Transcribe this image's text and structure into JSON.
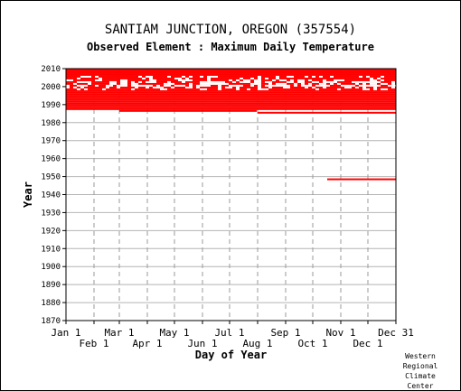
{
  "page": {
    "title": "SANTIAM JUNCTION, OREGON   (357554)",
    "subtitle": "Observed Element : Maximum Daily Temperature",
    "credit": [
      "Western",
      "Regional",
      "Climate",
      "Center"
    ]
  },
  "chart_data": {
    "type": "heatmap",
    "title": "SANTIAM JUNCTION, OREGON   (357554)",
    "subtitle": "Observed Element : Maximum Daily Temperature",
    "xlabel": "Day of Year",
    "ylabel": "Year",
    "xlim": [
      1,
      366
    ],
    "ylim": [
      1870,
      2010
    ],
    "grid": true,
    "mark_color": "#ff0000",
    "x_ticks": [
      {
        "day": 1,
        "label": "Jan 1",
        "row": 1
      },
      {
        "day": 32,
        "label": "Feb 1",
        "row": 2
      },
      {
        "day": 60,
        "label": "Mar 1",
        "row": 1
      },
      {
        "day": 91,
        "label": "Apr 1",
        "row": 2
      },
      {
        "day": 121,
        "label": "May 1",
        "row": 1
      },
      {
        "day": 152,
        "label": "Jun 1",
        "row": 2
      },
      {
        "day": 182,
        "label": "Jul 1",
        "row": 1
      },
      {
        "day": 213,
        "label": "Aug 1",
        "row": 2
      },
      {
        "day": 244,
        "label": "Sep 1",
        "row": 1
      },
      {
        "day": 274,
        "label": "Oct 1",
        "row": 2
      },
      {
        "day": 305,
        "label": "Nov 1",
        "row": 1
      },
      {
        "day": 335,
        "label": "Dec 1",
        "row": 2
      },
      {
        "day": 366,
        "label": "Dec 31",
        "row": 1
      }
    ],
    "y_ticks": [
      1870,
      1880,
      1890,
      1900,
      1910,
      1920,
      1930,
      1940,
      1950,
      1960,
      1970,
      1980,
      1990,
      2000,
      2010
    ],
    "observed_periods": [
      {
        "start_day": 290,
        "start_year": 1948,
        "end_day": 366,
        "end_year": 1948
      },
      {
        "start_day": 60,
        "start_year": 1986,
        "end_day": 212,
        "end_year": 1986
      },
      {
        "start_day": 213,
        "start_year": 1985,
        "end_day": 366,
        "end_year": 1985
      },
      {
        "start_day": 1,
        "start_year": 1987,
        "end_day": 366,
        "end_year": 2009
      }
    ],
    "sparse_years": [
      {
        "year": 1998,
        "fill": 0.8
      },
      {
        "year": 1999,
        "fill": 0.6
      },
      {
        "year": 2000,
        "fill": 0.35
      },
      {
        "year": 2001,
        "fill": 0.55
      },
      {
        "year": 2002,
        "fill": 0.5
      },
      {
        "year": 2003,
        "fill": 0.65
      },
      {
        "year": 2004,
        "fill": 0.8
      },
      {
        "year": 2005,
        "fill": 0.7
      }
    ]
  }
}
